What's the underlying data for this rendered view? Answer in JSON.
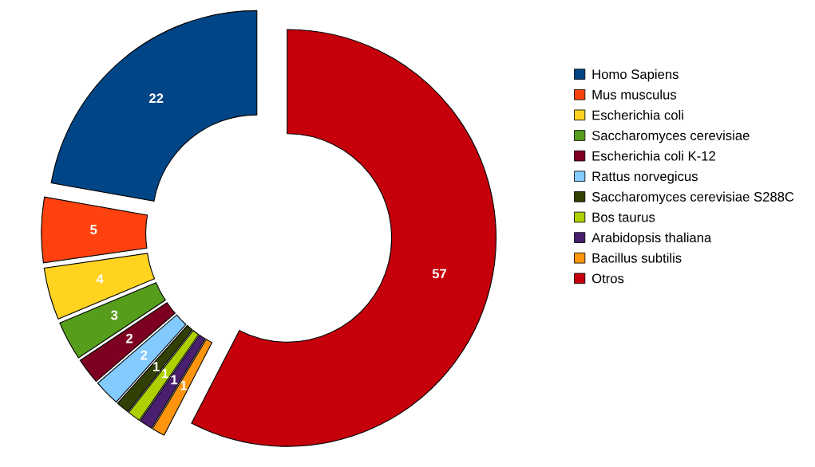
{
  "chart_data": {
    "type": "donut",
    "categories": [
      "Homo Sapiens",
      "Mus musculus",
      "Escherichia coli",
      "Saccharomyces cerevisiae",
      "Escherichia coli K-12",
      "Rattus norvegicus",
      "Saccharomyces cerevisiae S288C",
      "Bos taurus",
      "Arabidopsis thaliana",
      "Bacillus subtilis",
      "Otros"
    ],
    "values": [
      22,
      5,
      4,
      3,
      2,
      2,
      1,
      1,
      1,
      1,
      57
    ],
    "colors": [
      "#004586",
      "#ff420e",
      "#ffd320",
      "#579d1c",
      "#7e0021",
      "#83caff",
      "#314004",
      "#aecf00",
      "#4b1f6f",
      "#ff950e",
      "#c5000b"
    ],
    "data_labels": true,
    "legend": "right"
  }
}
